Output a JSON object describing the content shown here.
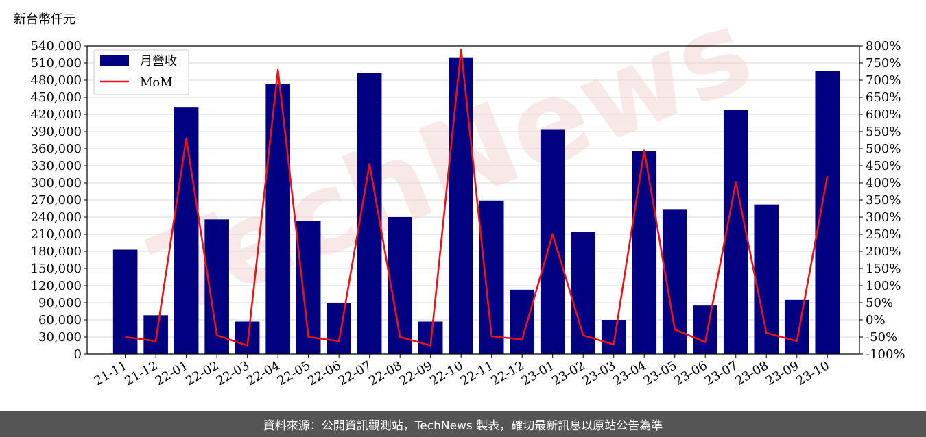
{
  "header": {
    "unit_label": "新台幣仟元"
  },
  "footer": {
    "source_text": "資料來源：公開資訊觀測站，TechNews 製表，確切最新訊息以原站公告為準"
  },
  "watermark": {
    "text": "TechNews"
  },
  "chart_data": {
    "type": "bar+line",
    "categories": [
      "21-11",
      "21-12",
      "22-01",
      "22-02",
      "22-03",
      "22-04",
      "22-05",
      "22-06",
      "22-07",
      "22-08",
      "22-09",
      "22-10",
      "22-11",
      "22-12",
      "23-01",
      "23-02",
      "23-03",
      "23-04",
      "23-05",
      "23-06",
      "23-07",
      "23-08",
      "23-09",
      "23-10"
    ],
    "series": [
      {
        "name": "月營收",
        "type": "bar",
        "axis": "left",
        "color": "#000080",
        "values": [
          183000,
          68000,
          433000,
          236000,
          57000,
          474000,
          233000,
          89000,
          492000,
          240000,
          57000,
          520000,
          269000,
          113000,
          393000,
          214000,
          60000,
          356000,
          254000,
          85000,
          428000,
          262000,
          95000,
          496000
        ]
      },
      {
        "name": "MoM",
        "type": "line",
        "axis": "right",
        "color": "#ee1111",
        "unit": "%",
        "values": [
          -50,
          -62,
          530,
          -45,
          -75,
          730,
          -50,
          -62,
          455,
          -50,
          -75,
          790,
          -48,
          -57,
          250,
          -45,
          -72,
          495,
          -28,
          -65,
          402,
          -38,
          -62,
          420
        ]
      }
    ],
    "ylim_left": [
      0,
      540000
    ],
    "yticks_left": [
      "0",
      "30,000",
      "60,000",
      "90,000",
      "120,000",
      "150,000",
      "180,000",
      "210,000",
      "240,000",
      "270,000",
      "300,000",
      "330,000",
      "360,000",
      "390,000",
      "420,000",
      "450,000",
      "480,000",
      "510,000",
      "540,000"
    ],
    "yticks_right": [
      "-100%",
      "-50%",
      "0%",
      "50%",
      "100%",
      "150%",
      "200%",
      "250%",
      "300%",
      "350%",
      "400%",
      "450%",
      "500%",
      "550%",
      "600%",
      "650%",
      "700%",
      "750%",
      "800%"
    ],
    "ylim_right": [
      -100,
      800
    ],
    "grid": "horizontal",
    "legend": "top-left"
  }
}
